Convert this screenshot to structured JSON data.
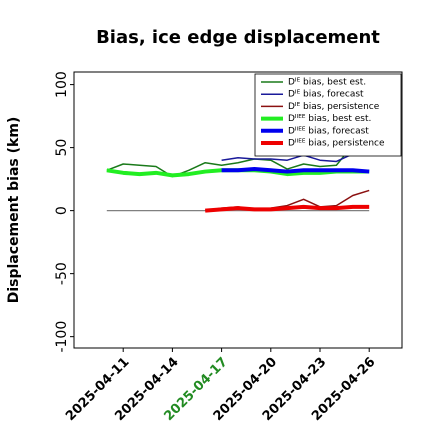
{
  "chart_data": {
    "type": "line",
    "title": "Bias, ice edge displacement",
    "ylabel": "Displacement bias (km)",
    "x": [
      "2025-04-10",
      "2025-04-11",
      "2025-04-12",
      "2025-04-13",
      "2025-04-14",
      "2025-04-15",
      "2025-04-16",
      "2025-04-17",
      "2025-04-18",
      "2025-04-19",
      "2025-04-20",
      "2025-04-21",
      "2025-04-22",
      "2025-04-23",
      "2025-04-24",
      "2025-04-25",
      "2025-04-26"
    ],
    "xlim": [
      "2025-04-08",
      "2025-04-28"
    ],
    "xticks": [
      "2025-04-11",
      "2025-04-14",
      "2025-04-17",
      "2025-04-20",
      "2025-04-23",
      "2025-04-26"
    ],
    "xtick_label_colors": [
      "#000000",
      "#000000",
      "#228b22",
      "#000000",
      "#000000",
      "#000000"
    ],
    "ylim": [
      -109,
      110
    ],
    "yticks": [
      -100,
      -50,
      0,
      50,
      100
    ],
    "grid": false,
    "legend": "upper right",
    "reference_line": {
      "y": 0,
      "color": "#808080"
    },
    "series": [
      {
        "name": "Dᴵᴱ bias, best est.",
        "color": "#1a7a1a",
        "width": 1.5,
        "values": [
          32,
          37,
          36,
          35,
          27,
          32,
          38,
          36,
          38,
          41,
          40,
          33,
          37,
          35,
          36,
          52,
          null
        ]
      },
      {
        "name": "Dᴵᴱ bias, forecast",
        "color": "#1a1a9a",
        "width": 1.5,
        "values": [
          null,
          null,
          null,
          null,
          null,
          null,
          null,
          40,
          42,
          41,
          41,
          40,
          44,
          40,
          39,
          45,
          null
        ]
      },
      {
        "name": "Dᴵᴱ bias, persistence",
        "color": "#8b1010",
        "width": 1.5,
        "values": [
          null,
          null,
          null,
          null,
          null,
          null,
          0,
          2,
          3,
          1,
          2,
          4,
          9,
          3,
          4,
          12,
          16
        ]
      },
      {
        "name": "Dᴵᴵᴱᴱ bias, best est.",
        "color": "#22ee22",
        "width": 4,
        "values": [
          32,
          30,
          29,
          30,
          28,
          29,
          31,
          32,
          32,
          32,
          31,
          29,
          30,
          30,
          31,
          31,
          31
        ]
      },
      {
        "name": "Dᴵᴵᴱᴱ bias, forecast",
        "color": "#0000ee",
        "width": 4,
        "values": [
          null,
          null,
          null,
          null,
          null,
          null,
          null,
          32,
          32,
          33,
          32,
          31,
          32,
          32,
          32,
          32,
          31
        ]
      },
      {
        "name": "Dᴵᴵᴱᴱ bias, persistence",
        "color": "#ee0000",
        "width": 4,
        "values": [
          null,
          null,
          null,
          null,
          null,
          null,
          0,
          1,
          2,
          1,
          1,
          2,
          3,
          2,
          2,
          3,
          3
        ]
      }
    ]
  }
}
